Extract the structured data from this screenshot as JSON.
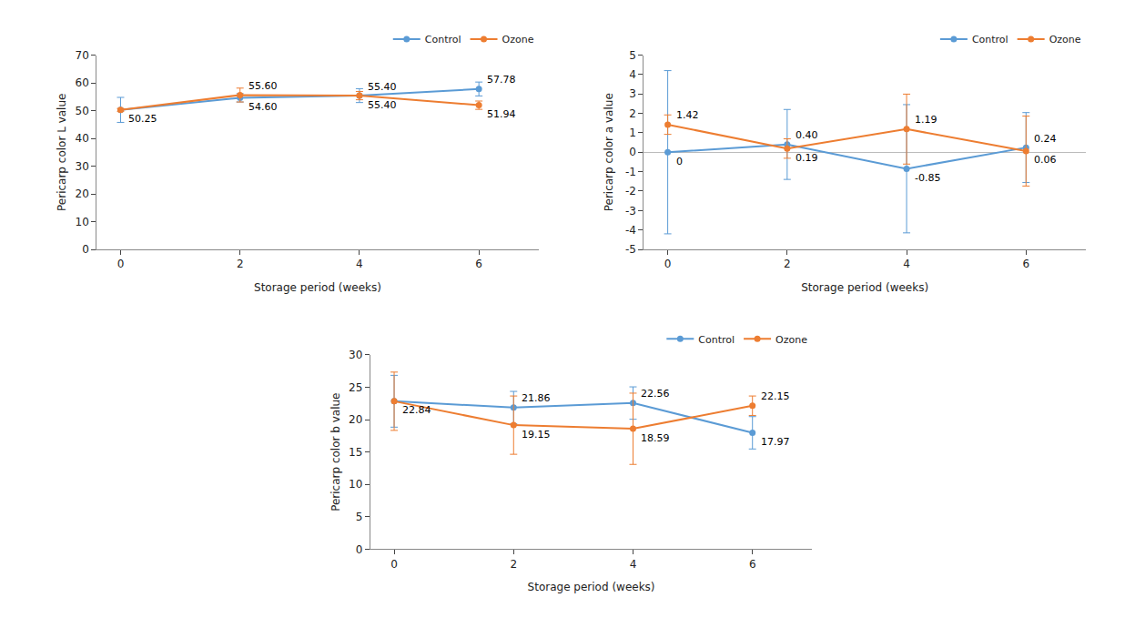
{
  "chart_data": [
    {
      "type": "line",
      "xlabel": "Storage period (weeks)",
      "ylabel": "Pericarp color L value",
      "x": [
        0,
        2,
        4,
        6
      ],
      "xlim": [
        -0.4,
        7.0
      ],
      "xticks": [
        0,
        2,
        4,
        6
      ],
      "ylim": [
        0,
        70
      ],
      "yticks": [
        0,
        10,
        20,
        30,
        40,
        50,
        60,
        70
      ],
      "grid": false,
      "legend": "upper right",
      "data_labels": true,
      "series": [
        {
          "name": "Control",
          "color": "#5b9bd5",
          "marker": "circle",
          "values": [
            50.25,
            54.6,
            55.4,
            57.78
          ],
          "errors": [
            4.5,
            1.5,
            2.5,
            2.5
          ],
          "value_labels": [
            null,
            "54.60",
            "55.40",
            "57.78"
          ]
        },
        {
          "name": "Ozone",
          "color": "#ed7d31",
          "marker": "circle",
          "values": [
            50.25,
            55.6,
            55.4,
            51.94
          ],
          "errors": [
            0.5,
            2.5,
            1.5,
            1.5
          ],
          "value_labels": [
            "50.25",
            "55.60",
            "55.40",
            "51.94"
          ]
        }
      ]
    },
    {
      "type": "line",
      "xlabel": "Storage period (weeks)",
      "ylabel": "Pericarp color a value",
      "x": [
        0,
        2,
        4,
        6
      ],
      "xlim": [
        -0.4,
        7.0
      ],
      "xticks": [
        0,
        2,
        4,
        6
      ],
      "ylim": [
        -5,
        5
      ],
      "yticks": [
        -5,
        -4,
        -3,
        -2,
        -1,
        0,
        1,
        2,
        3,
        4,
        5
      ],
      "grid": false,
      "legend": "upper right",
      "data_labels": true,
      "series": [
        {
          "name": "Control",
          "color": "#5b9bd5",
          "marker": "circle",
          "values": [
            0.0,
            0.4,
            -0.85,
            0.24
          ],
          "errors": [
            4.2,
            1.8,
            3.3,
            1.8
          ],
          "value_labels": [
            "0",
            "0.40",
            "-0.85",
            "0.24"
          ]
        },
        {
          "name": "Ozone",
          "color": "#ed7d31",
          "marker": "circle",
          "values": [
            1.42,
            0.19,
            1.19,
            0.06
          ],
          "errors": [
            0.5,
            0.5,
            1.8,
            1.8
          ],
          "value_labels": [
            "1.42",
            "0.19",
            "1.19",
            "0.06"
          ]
        }
      ]
    },
    {
      "type": "line",
      "xlabel": "Storage period (weeks)",
      "ylabel": "Pericarp color b value",
      "x": [
        0,
        2,
        4,
        6
      ],
      "xlim": [
        -0.4,
        7.0
      ],
      "xticks": [
        0,
        2,
        4,
        6
      ],
      "ylim": [
        0,
        30
      ],
      "yticks": [
        0,
        5,
        10,
        15,
        20,
        25,
        30
      ],
      "grid": false,
      "legend": "upper right",
      "data_labels": true,
      "series": [
        {
          "name": "Control",
          "color": "#5b9bd5",
          "marker": "circle",
          "values": [
            22.84,
            21.86,
            22.56,
            17.97
          ],
          "errors": [
            4.0,
            2.5,
            2.5,
            2.5
          ],
          "value_labels": [
            null,
            "21.86",
            "22.56",
            "17.97"
          ]
        },
        {
          "name": "Ozone",
          "color": "#ed7d31",
          "marker": "circle",
          "values": [
            22.84,
            19.15,
            18.59,
            22.15
          ],
          "errors": [
            4.5,
            4.5,
            5.5,
            1.5
          ],
          "value_labels": [
            "22.84",
            "19.15",
            "18.59",
            "22.15"
          ]
        }
      ]
    }
  ]
}
